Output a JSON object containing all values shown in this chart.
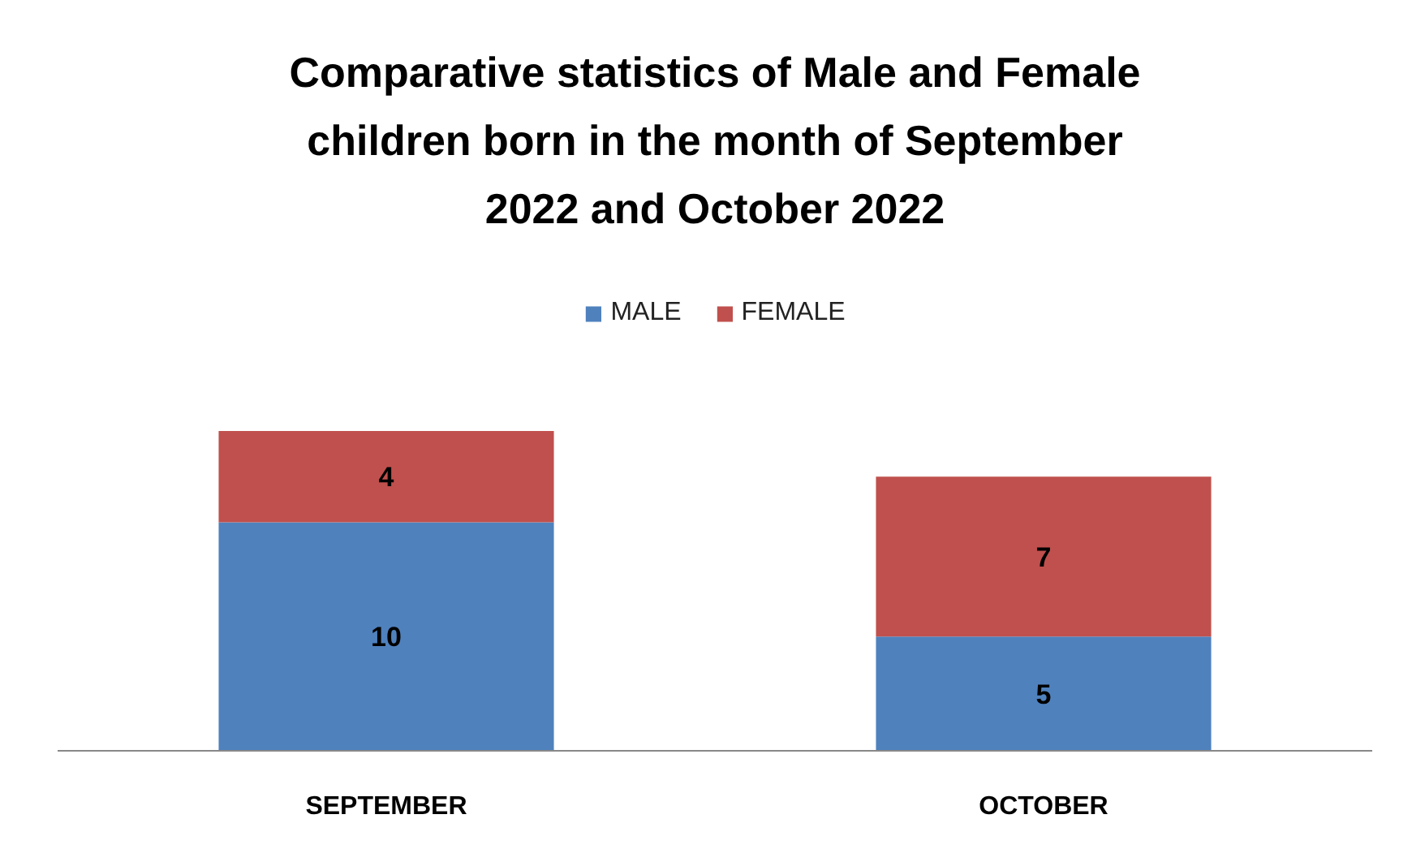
{
  "chart_data": {
    "type": "bar",
    "stacked": true,
    "title": "Comparative statistics of Male and Female\nchildren born in the month of September\n2022 and October 2022",
    "categories": [
      "SEPTEMBER",
      "OCTOBER"
    ],
    "series": [
      {
        "name": "MALE",
        "color": "#4f81bd",
        "values": [
          10,
          5
        ]
      },
      {
        "name": "FEMALE",
        "color": "#c0504d",
        "values": [
          4,
          7
        ]
      }
    ],
    "data_labels": true,
    "legend": "top"
  }
}
